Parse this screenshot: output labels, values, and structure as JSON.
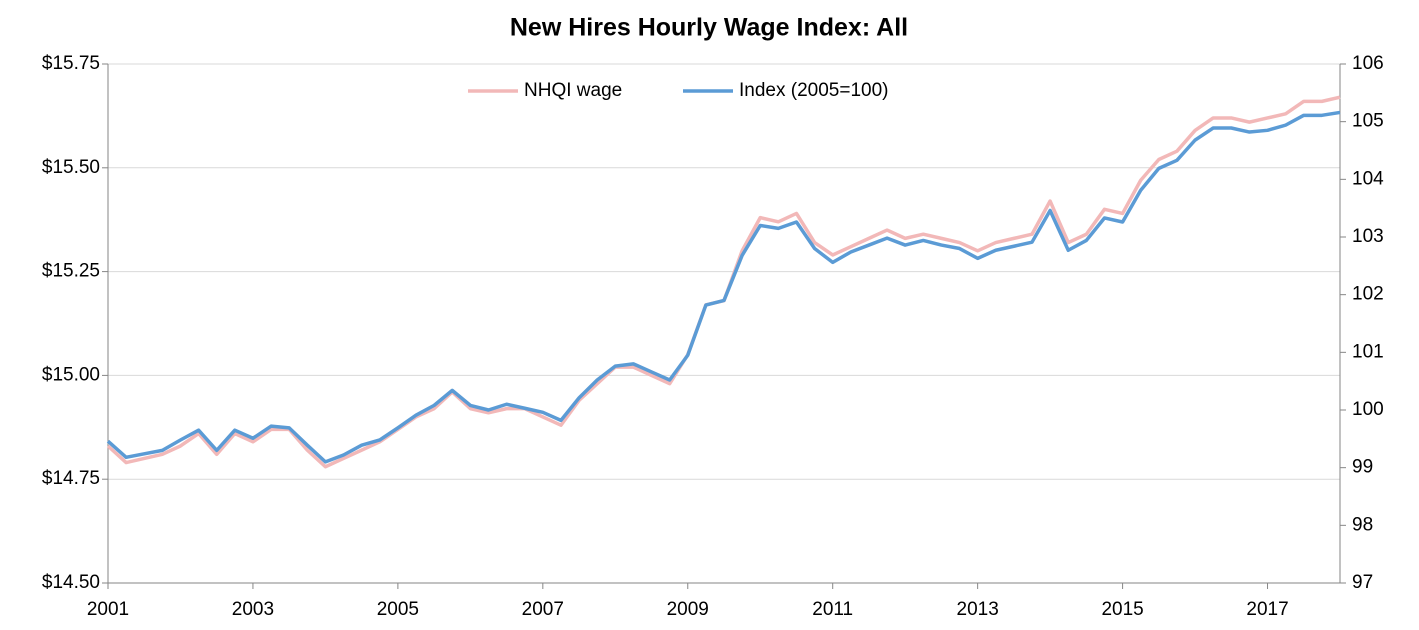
{
  "chart_data": {
    "type": "line",
    "title": "New Hires Hourly Wage Index: All",
    "x": [
      2001,
      2001.25,
      2001.5,
      2001.75,
      2002,
      2002.25,
      2002.5,
      2002.75,
      2003,
      2003.25,
      2003.5,
      2003.75,
      2004,
      2004.25,
      2004.5,
      2004.75,
      2005,
      2005.25,
      2005.5,
      2005.75,
      2006,
      2006.25,
      2006.5,
      2006.75,
      2007,
      2007.25,
      2007.5,
      2007.75,
      2008,
      2008.25,
      2008.5,
      2008.75,
      2009,
      2009.25,
      2009.5,
      2009.75,
      2010,
      2010.25,
      2010.5,
      2010.75,
      2011,
      2011.25,
      2011.5,
      2011.75,
      2012,
      2012.25,
      2012.5,
      2012.75,
      2013,
      2013.25,
      2013.5,
      2013.75,
      2014,
      2014.25,
      2014.5,
      2014.75,
      2015,
      2015.25,
      2015.5,
      2015.75,
      2016,
      2016.25,
      2016.5,
      2016.75,
      2017,
      2017.25,
      2017.5,
      2017.75,
      2018
    ],
    "series": [
      {
        "name": "NHQI wage",
        "color": "#f2b8b8",
        "axis": "y",
        "values": [
          14.83,
          14.79,
          14.8,
          14.81,
          14.83,
          14.86,
          14.81,
          14.86,
          14.84,
          14.87,
          14.87,
          14.82,
          14.78,
          14.8,
          14.82,
          14.84,
          14.87,
          14.9,
          14.92,
          14.96,
          14.92,
          14.91,
          14.92,
          14.92,
          14.9,
          14.88,
          14.94,
          14.98,
          15.02,
          15.02,
          15.0,
          14.98,
          15.05,
          15.17,
          15.18,
          15.3,
          15.38,
          15.37,
          15.39,
          15.32,
          15.29,
          15.31,
          15.33,
          15.35,
          15.33,
          15.34,
          15.33,
          15.32,
          15.3,
          15.32,
          15.33,
          15.34,
          15.42,
          15.32,
          15.34,
          15.4,
          15.39,
          15.47,
          15.52,
          15.54,
          15.59,
          15.62,
          15.62,
          15.61,
          15.62,
          15.63,
          15.66,
          15.66,
          15.67
        ]
      },
      {
        "name": "Index (2005=100)",
        "color": "#5b9bd5",
        "axis": "y2",
        "values": [
          99.46,
          99.18,
          99.24,
          99.3,
          99.48,
          99.65,
          99.3,
          99.65,
          99.51,
          99.72,
          99.69,
          99.39,
          99.1,
          99.22,
          99.39,
          99.48,
          99.69,
          99.91,
          100.08,
          100.34,
          100.08,
          100.0,
          100.1,
          100.03,
          99.96,
          99.82,
          100.21,
          100.52,
          100.76,
          100.8,
          100.66,
          100.52,
          100.95,
          101.82,
          101.9,
          102.68,
          103.2,
          103.15,
          103.26,
          102.8,
          102.56,
          102.74,
          102.86,
          102.98,
          102.86,
          102.94,
          102.86,
          102.8,
          102.63,
          102.77,
          102.84,
          102.91,
          103.46,
          102.77,
          102.94,
          103.33,
          103.26,
          103.81,
          104.19,
          104.33,
          104.68,
          104.89,
          104.89,
          104.82,
          104.85,
          104.94,
          105.11,
          105.11,
          105.16
        ]
      }
    ],
    "xlim": [
      2001,
      2018
    ],
    "xticks": [
      2001,
      2003,
      2005,
      2007,
      2009,
      2011,
      2013,
      2015,
      2017
    ],
    "ylim": [
      14.5,
      15.75
    ],
    "yticks": [
      {
        "value": 14.5,
        "label": "$14.50"
      },
      {
        "value": 14.75,
        "label": "$14.75"
      },
      {
        "value": 15.0,
        "label": "$15.00"
      },
      {
        "value": 15.25,
        "label": "$15.25"
      },
      {
        "value": 15.5,
        "label": "$15.50"
      },
      {
        "value": 15.75,
        "label": "$15.75"
      }
    ],
    "y2lim": [
      97,
      106
    ],
    "y2ticks": [
      97,
      98,
      99,
      100,
      101,
      102,
      103,
      104,
      105,
      106
    ],
    "grid": true,
    "legend": "top"
  }
}
